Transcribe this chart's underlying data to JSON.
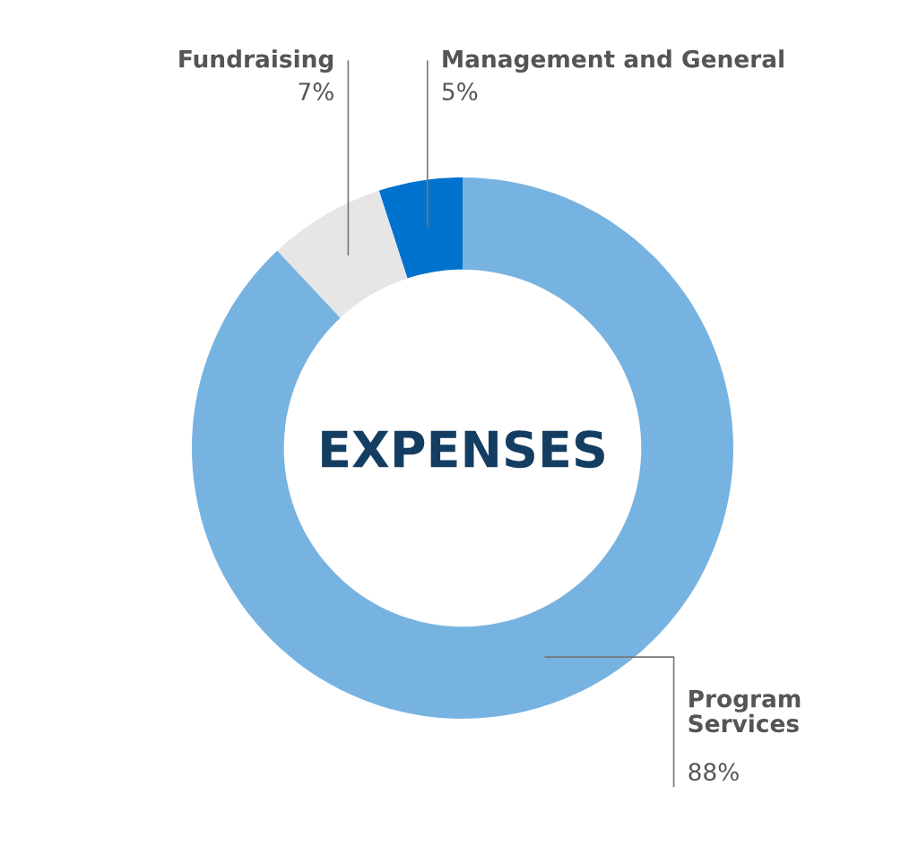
{
  "chart_data": {
    "type": "donut",
    "title": "EXPENSES",
    "categories": [
      "Management and General",
      "Fundraising",
      "Program Services"
    ],
    "values": [
      5,
      7,
      88
    ],
    "value_labels": [
      "5%",
      "7%",
      "88%"
    ],
    "colors": [
      "#0073cf",
      "#e6e6e6",
      "#77b3e1"
    ],
    "legend": false
  }
}
